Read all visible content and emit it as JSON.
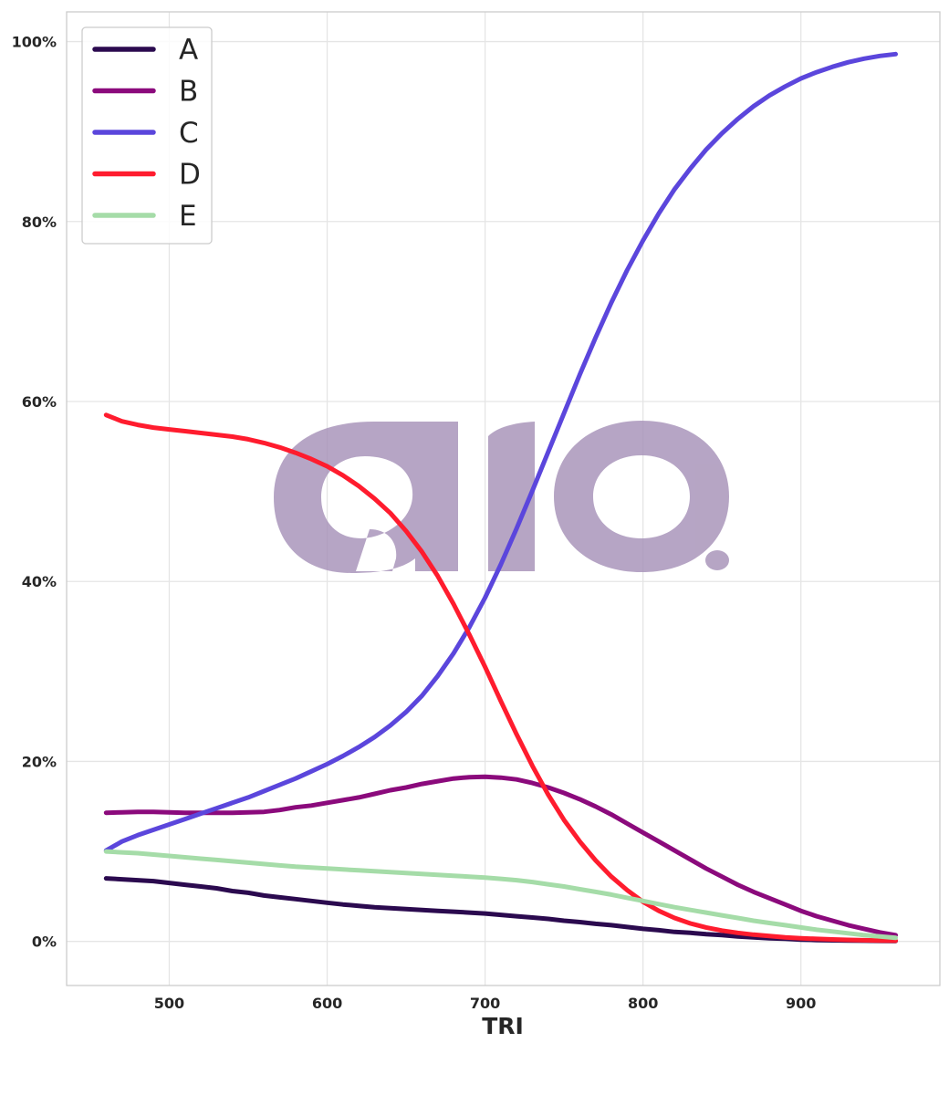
{
  "chart_data": {
    "type": "line",
    "xlabel": "TRI",
    "ylabel": "",
    "xlim": [
      435,
      988
    ],
    "ylim": [
      -4.9,
      103.3
    ],
    "xticks": [
      500,
      600,
      700,
      800,
      900
    ],
    "yticks": [
      0,
      20,
      40,
      60,
      80,
      100
    ],
    "ytick_labels": [
      "0%",
      "20%",
      "40%",
      "60%",
      "80%",
      "100%"
    ],
    "grid": true,
    "legend_position": "top-left",
    "x": [
      460,
      470,
      480,
      490,
      500,
      510,
      520,
      530,
      540,
      550,
      560,
      570,
      580,
      590,
      600,
      610,
      620,
      630,
      640,
      650,
      660,
      670,
      680,
      690,
      700,
      710,
      720,
      730,
      740,
      750,
      760,
      770,
      780,
      790,
      800,
      810,
      820,
      830,
      840,
      850,
      860,
      870,
      880,
      890,
      900,
      910,
      920,
      930,
      940,
      950,
      960
    ],
    "series": [
      {
        "name": "A",
        "color": "#2b0a4f",
        "values": [
          7.0,
          6.9,
          6.8,
          6.7,
          6.5,
          6.3,
          6.1,
          5.9,
          5.6,
          5.4,
          5.1,
          4.9,
          4.7,
          4.5,
          4.3,
          4.1,
          3.95,
          3.8,
          3.7,
          3.6,
          3.5,
          3.4,
          3.3,
          3.2,
          3.1,
          2.95,
          2.8,
          2.65,
          2.5,
          2.3,
          2.15,
          1.95,
          1.8,
          1.6,
          1.4,
          1.25,
          1.05,
          0.95,
          0.8,
          0.7,
          0.55,
          0.45,
          0.35,
          0.3,
          0.2,
          0.15,
          0.12,
          0.1,
          0.08,
          0.06,
          0.05
        ]
      },
      {
        "name": "B",
        "color": "#8b0a7c",
        "values": [
          14.3,
          14.35,
          14.4,
          14.4,
          14.35,
          14.3,
          14.3,
          14.3,
          14.3,
          14.35,
          14.4,
          14.6,
          14.9,
          15.1,
          15.4,
          15.7,
          16.0,
          16.4,
          16.8,
          17.1,
          17.5,
          17.8,
          18.1,
          18.25,
          18.3,
          18.2,
          18.0,
          17.6,
          17.1,
          16.5,
          15.8,
          15.0,
          14.1,
          13.1,
          12.1,
          11.1,
          10.1,
          9.1,
          8.1,
          7.2,
          6.3,
          5.5,
          4.8,
          4.1,
          3.4,
          2.8,
          2.3,
          1.8,
          1.4,
          1.0,
          0.7
        ]
      },
      {
        "name": "C",
        "color": "#5b46dc",
        "values": [
          10.1,
          11.1,
          11.8,
          12.4,
          13.0,
          13.6,
          14.2,
          14.8,
          15.4,
          16.0,
          16.7,
          17.4,
          18.1,
          18.9,
          19.7,
          20.6,
          21.6,
          22.7,
          24.0,
          25.5,
          27.3,
          29.5,
          32.0,
          34.9,
          38.2,
          41.9,
          45.9,
          50.1,
          54.4,
          58.7,
          63.0,
          67.1,
          71.0,
          74.6,
          77.9,
          80.9,
          83.6,
          85.9,
          88.0,
          89.8,
          91.4,
          92.8,
          94.0,
          95.0,
          95.9,
          96.6,
          97.2,
          97.7,
          98.1,
          98.4,
          98.6
        ]
      },
      {
        "name": "D",
        "color": "#ff1c2e",
        "values": [
          58.5,
          57.8,
          57.4,
          57.1,
          56.9,
          56.7,
          56.5,
          56.3,
          56.1,
          55.8,
          55.4,
          54.9,
          54.3,
          53.6,
          52.8,
          51.8,
          50.6,
          49.2,
          47.6,
          45.6,
          43.3,
          40.6,
          37.5,
          34.1,
          30.5,
          26.7,
          23.0,
          19.5,
          16.3,
          13.5,
          11.1,
          9.0,
          7.2,
          5.7,
          4.4,
          3.4,
          2.6,
          2.0,
          1.55,
          1.2,
          0.95,
          0.75,
          0.6,
          0.45,
          0.35,
          0.28,
          0.22,
          0.17,
          0.13,
          0.1,
          0.08
        ]
      },
      {
        "name": "E",
        "color": "#a5dca8",
        "values": [
          10.0,
          9.9,
          9.8,
          9.65,
          9.5,
          9.35,
          9.2,
          9.05,
          8.9,
          8.75,
          8.6,
          8.45,
          8.3,
          8.2,
          8.1,
          8.0,
          7.9,
          7.8,
          7.7,
          7.6,
          7.5,
          7.4,
          7.3,
          7.2,
          7.1,
          6.95,
          6.8,
          6.6,
          6.35,
          6.1,
          5.8,
          5.5,
          5.2,
          4.85,
          4.5,
          4.15,
          3.8,
          3.5,
          3.2,
          2.9,
          2.6,
          2.3,
          2.05,
          1.8,
          1.55,
          1.3,
          1.1,
          0.9,
          0.7,
          0.55,
          0.4
        ]
      }
    ]
  },
  "watermark": {
    "text": "aio.",
    "color": "#a48fb6"
  }
}
